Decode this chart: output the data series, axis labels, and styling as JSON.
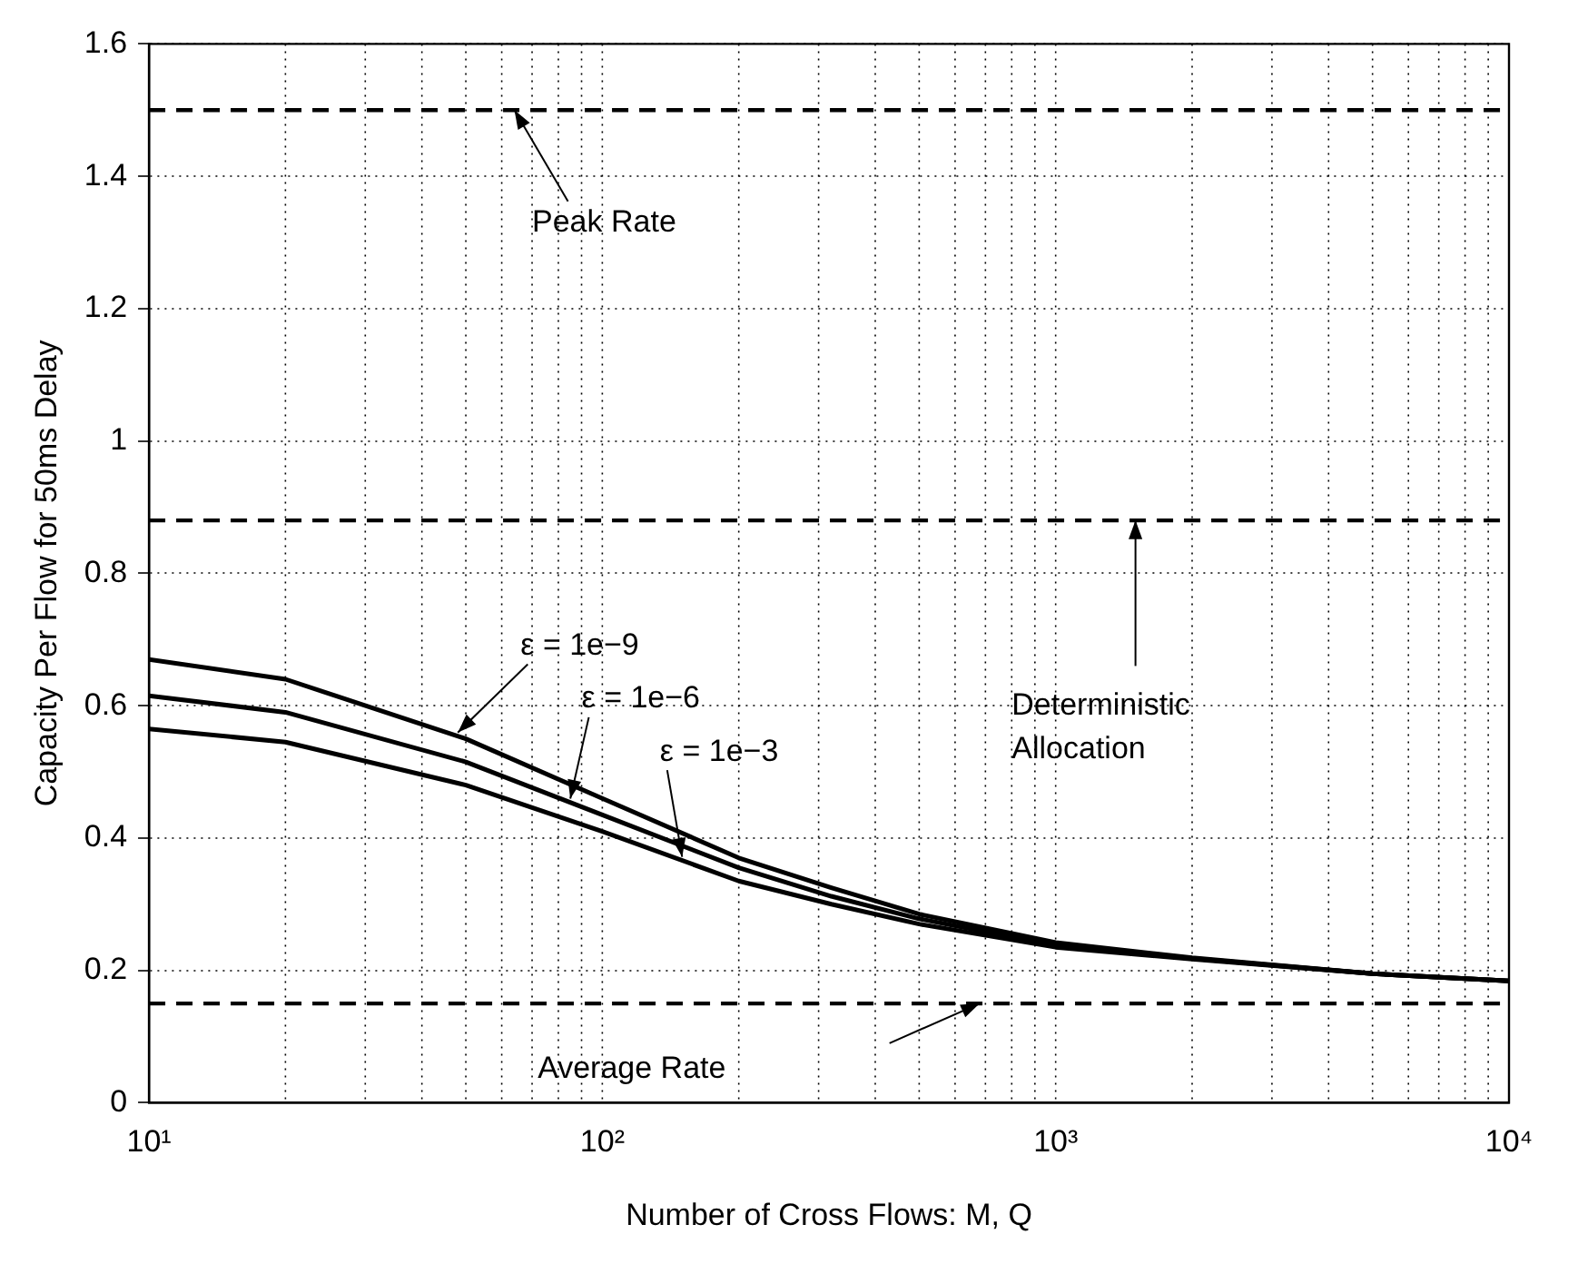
{
  "chart_data": {
    "type": "line",
    "xlabel": "Number of Cross Flows: M, Q",
    "ylabel": "Capacity Per Flow for 50ms Delay",
    "log": "x",
    "xlim": [
      10,
      10000
    ],
    "xticks": [
      {
        "value": 10,
        "label": "10¹"
      },
      {
        "value": 100,
        "label": "10²"
      },
      {
        "value": 1000,
        "label": "10³"
      },
      {
        "value": 10000,
        "label": "10⁴"
      }
    ],
    "ylim": [
      0,
      1.6
    ],
    "yticks": [
      0,
      0.2,
      0.4,
      0.6,
      0.8,
      1,
      1.2,
      1.4,
      1.6
    ],
    "grid": true,
    "legend": false,
    "marker": "none",
    "line_style": "solid",
    "x": [
      10,
      20,
      50,
      100,
      200,
      320,
      500,
      1000,
      2000,
      5000,
      10000
    ],
    "series": [
      {
        "color": "#000000",
        "values": [
          0.67,
          0.64,
          0.55,
          0.46,
          0.37,
          0.325,
          0.285,
          0.242,
          0.219,
          0.195,
          0.184
        ]
      },
      {
        "color": "#000000",
        "values": [
          0.615,
          0.59,
          0.515,
          0.435,
          0.355,
          0.312,
          0.278,
          0.238,
          0.218,
          0.195,
          0.184
        ]
      },
      {
        "color": "#000000",
        "values": [
          0.565,
          0.545,
          0.48,
          0.41,
          0.335,
          0.3,
          0.27,
          0.235,
          0.217,
          0.195,
          0.184
        ]
      }
    ],
    "annotations": [
      {
        "text": "ε = 1e−9",
        "x": 48,
        "y": 0.554
      },
      {
        "text": "ε = 1e−6",
        "x": 85,
        "y": 0.454
      },
      {
        "text": "ε = 1e−3",
        "x": 150,
        "y": 0.366
      }
    ],
    "ref_lines": [
      {
        "axis": "y",
        "value": 1.5,
        "label": "Peak Rate",
        "color": "#000000",
        "line_style": "dashed"
      },
      {
        "axis": "y",
        "value": 0.88,
        "label": "Deterministic Allocation",
        "color": "#000000",
        "line_style": "dashed"
      },
      {
        "axis": "y",
        "value": 0.15,
        "label": "Average Rate",
        "color": "#000000",
        "line_style": "dashed"
      }
    ]
  }
}
